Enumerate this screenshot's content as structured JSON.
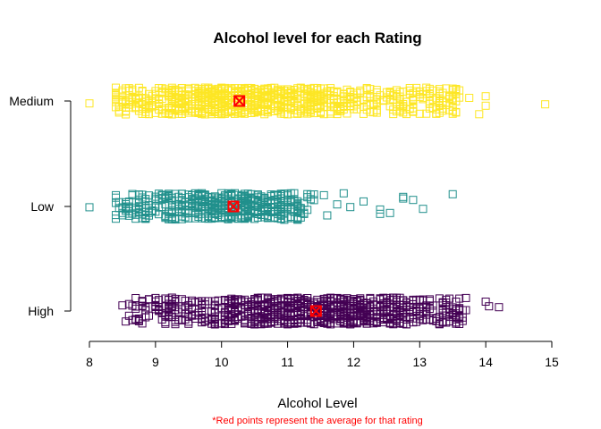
{
  "chart_data": {
    "type": "scatter",
    "title": "Alcohol level for each Rating",
    "xlabel": "Alcohol Level",
    "ylabel": "",
    "xlim": [
      8,
      15
    ],
    "xticks": [
      "8",
      "9",
      "10",
      "11",
      "12",
      "13",
      "14",
      "15"
    ],
    "categories": [
      "High",
      "Low",
      "Medium"
    ],
    "footnote": "*Red points represent the average for that rating",
    "mean_color": "#ff0000",
    "series": [
      {
        "category": "High",
        "color": "#440154",
        "mean": 11.43,
        "range": [
          8.5,
          14.2
        ],
        "dense_range": [
          8.6,
          13.7
        ],
        "outliers": [
          8.5,
          8.55,
          14.0,
          14.05,
          14.2
        ]
      },
      {
        "category": "Low",
        "color": "#21908c",
        "mean": 10.18,
        "range": [
          8.0,
          13.5
        ],
        "dense_range": [
          8.4,
          11.4
        ],
        "outliers": [
          8.0,
          11.55,
          11.6,
          11.75,
          11.85,
          11.95,
          12.15,
          12.4,
          12.4,
          12.55,
          12.75,
          12.75,
          12.9,
          13.05,
          13.5
        ]
      },
      {
        "category": "Medium",
        "color": "#fde725",
        "mean": 10.27,
        "range": [
          8.0,
          14.9
        ],
        "dense_range": [
          8.4,
          13.6
        ],
        "outliers": [
          8.0,
          13.75,
          13.9,
          14.0,
          14.0,
          14.9
        ]
      }
    ]
  }
}
